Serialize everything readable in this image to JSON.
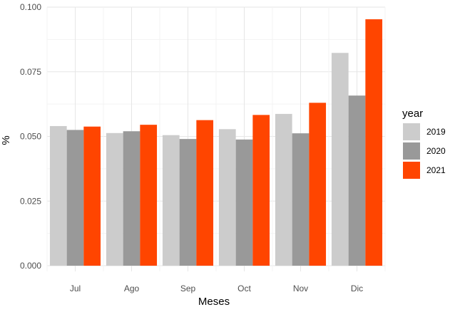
{
  "chart_data": {
    "type": "bar",
    "xlabel": "Meses",
    "ylabel": "%",
    "categories": [
      "Jul",
      "Ago",
      "Sep",
      "Oct",
      "Nov",
      "Dic"
    ],
    "series": [
      {
        "name": "2019",
        "color": "#cccccc",
        "values": [
          0.054,
          0.0513,
          0.0505,
          0.0528,
          0.0587,
          0.0823
        ]
      },
      {
        "name": "2020",
        "color": "#999999",
        "values": [
          0.0525,
          0.052,
          0.049,
          0.0488,
          0.0512,
          0.0658
        ]
      },
      {
        "name": "2021",
        "color": "#ff4500",
        "values": [
          0.0538,
          0.0545,
          0.0563,
          0.0583,
          0.063,
          0.0953
        ]
      }
    ],
    "yticks": [
      0.0,
      0.025,
      0.05,
      0.075,
      0.1
    ],
    "ytick_labels": [
      "0.000",
      "0.025",
      "0.050",
      "0.075",
      "0.100"
    ],
    "ylim": [
      0,
      0.1
    ],
    "grid": true,
    "legend": {
      "title": "year",
      "placement": "right"
    }
  }
}
